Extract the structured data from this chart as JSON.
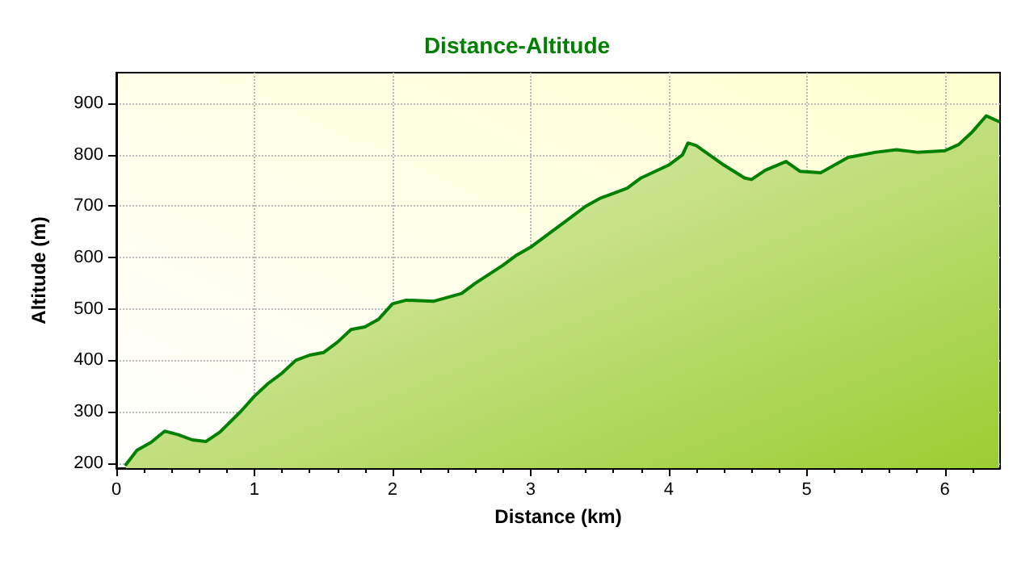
{
  "chart_data": {
    "type": "area",
    "title": "Distance-Altitude",
    "xlabel": "Distance (km)",
    "ylabel": "Altitude (m)",
    "x": [
      0.07,
      0.15,
      0.25,
      0.35,
      0.45,
      0.55,
      0.65,
      0.75,
      0.9,
      1.0,
      1.1,
      1.2,
      1.3,
      1.4,
      1.5,
      1.6,
      1.7,
      1.8,
      1.9,
      2.0,
      2.1,
      2.3,
      2.5,
      2.6,
      2.8,
      2.9,
      3.0,
      3.1,
      3.25,
      3.4,
      3.5,
      3.7,
      3.8,
      4.0,
      4.1,
      4.14,
      4.2,
      4.4,
      4.55,
      4.6,
      4.7,
      4.85,
      4.95,
      5.1,
      5.3,
      5.5,
      5.65,
      5.8,
      6.0,
      6.1,
      6.2,
      6.3,
      6.39
    ],
    "series": [
      {
        "color": "#008000",
        "values": [
          197,
          225,
          240,
          262,
          255,
          245,
          242,
          260,
          300,
          330,
          355,
          375,
          400,
          410,
          415,
          435,
          460,
          465,
          480,
          510,
          517,
          515,
          530,
          550,
          585,
          605,
          620,
          640,
          670,
          700,
          715,
          735,
          755,
          780,
          800,
          823,
          818,
          780,
          755,
          752,
          770,
          787,
          768,
          765,
          795,
          805,
          810,
          805,
          808,
          820,
          845,
          876,
          865
        ]
      }
    ],
    "xlim": [
      0,
      6.4
    ],
    "xticks": [
      0,
      1,
      2,
      3,
      4,
      5,
      6
    ],
    "ylim": [
      190,
      960
    ],
    "yticks": [
      200,
      300,
      400,
      500,
      600,
      700,
      800,
      900
    ],
    "grid": true,
    "line_style": "solid",
    "marker": "none"
  }
}
